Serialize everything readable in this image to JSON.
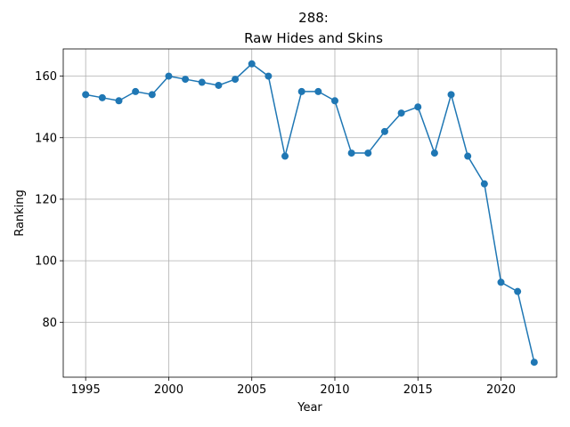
{
  "chart_data": {
    "type": "line",
    "title_line1": "288:",
    "title_line2": "Raw Hides and Skins",
    "xlabel": "Year",
    "ylabel": "Ranking",
    "x": [
      1995,
      1996,
      1997,
      1998,
      1999,
      2000,
      2001,
      2002,
      2003,
      2004,
      2005,
      2006,
      2007,
      2008,
      2009,
      2010,
      2011,
      2012,
      2013,
      2014,
      2015,
      2016,
      2017,
      2018,
      2019,
      2020,
      2021,
      2022
    ],
    "series": [
      {
        "values": [
          154,
          153,
          152,
          155,
          154,
          160,
          159,
          158,
          157,
          159,
          164,
          160,
          134,
          155,
          155,
          152,
          135,
          135,
          142,
          148,
          150,
          135,
          154,
          134,
          125,
          93,
          90,
          67
        ],
        "color": "#1f77b4"
      }
    ],
    "xlim": [
      1993.65,
      2023.35
    ],
    "ylim": [
      62.15,
      168.85
    ],
    "xticks": [
      1995,
      2000,
      2005,
      2010,
      2015,
      2020
    ],
    "yticks": [
      80,
      100,
      120,
      140,
      160
    ],
    "grid": true
  }
}
